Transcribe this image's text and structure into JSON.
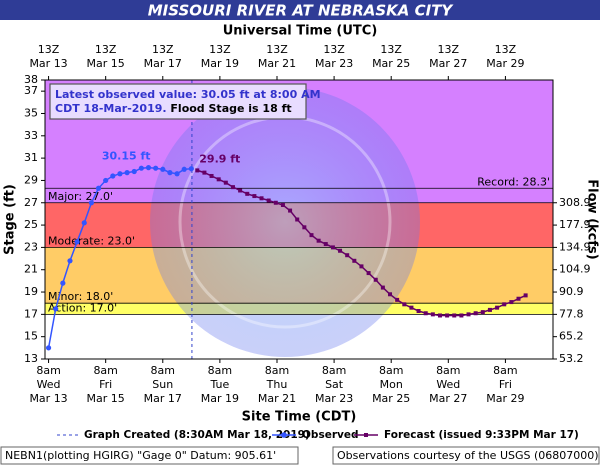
{
  "header": {
    "title": "MISSOURI RIVER AT NEBRASKA CITY",
    "top_axis_title": "Universal Time (UTC)"
  },
  "chart_data": {
    "type": "line",
    "xlabel": "Site Time (CDT)",
    "ylabel": "Stage (ft)",
    "y2label": "Flow (kcfs)",
    "xlim": [
      "2019-03-13T05:00",
      "2019-03-31T00:00"
    ],
    "ylim": [
      13,
      38
    ],
    "yticks": [
      13,
      15,
      17,
      19,
      21,
      23,
      25,
      27,
      29,
      31,
      33,
      35,
      37,
      38
    ],
    "y2ticks": [
      53.2,
      65.2,
      77.8,
      90.9,
      104.9,
      134.9,
      177.9,
      308.9
    ],
    "xticks": [
      {
        "value": "2019-03-13T08:00",
        "label": "8am",
        "weekday": "Wed",
        "date": "Mar 13",
        "utc": "13Z",
        "utc_date": "Mar 13"
      },
      {
        "value": "2019-03-15T08:00",
        "label": "8am",
        "weekday": "Fri",
        "date": "Mar 15",
        "utc": "13Z",
        "utc_date": "Mar 15"
      },
      {
        "value": "2019-03-17T08:00",
        "label": "8am",
        "weekday": "Sun",
        "date": "Mar 17",
        "utc": "13Z",
        "utc_date": "Mar 17"
      },
      {
        "value": "2019-03-19T08:00",
        "label": "8am",
        "weekday": "Tue",
        "date": "Mar 19",
        "utc": "13Z",
        "utc_date": "Mar 19"
      },
      {
        "value": "2019-03-21T08:00",
        "label": "8am",
        "weekday": "Thu",
        "date": "Mar 21",
        "utc": "13Z",
        "utc_date": "Mar 21"
      },
      {
        "value": "2019-03-23T08:00",
        "label": "8am",
        "weekday": "Sat",
        "date": "Mar 23",
        "utc": "13Z",
        "utc_date": "Mar 23"
      },
      {
        "value": "2019-03-25T08:00",
        "label": "8am",
        "weekday": "Mon",
        "date": "Mar 25",
        "utc": "13Z",
        "utc_date": "Mar 25"
      },
      {
        "value": "2019-03-27T08:00",
        "label": "8am",
        "weekday": "Wed",
        "date": "Mar 27",
        "utc": "13Z",
        "utc_date": "Mar 27"
      },
      {
        "value": "2019-03-29T08:00",
        "label": "8am",
        "weekday": "Fri",
        "date": "Mar 29",
        "utc": "13Z",
        "utc_date": "Mar 29"
      }
    ],
    "thresholds": [
      {
        "value": 17,
        "label": "Action: 17.0'",
        "color": "#ffff66"
      },
      {
        "value": 18,
        "label": "Minor: 18.0'",
        "color": "#ffcc66"
      },
      {
        "value": 23,
        "label": "Moderate: 23.0'",
        "color": "#ff6666"
      },
      {
        "value": 27,
        "label": "Major: 27.0'",
        "color": "#d580ff"
      }
    ],
    "record": {
      "value": 28.3,
      "label": "Record: 28.3'"
    },
    "series": [
      {
        "name": "Observed",
        "color": "#3355ff",
        "marker": "circle",
        "x": [
          "2019-03-13T08:00",
          "2019-03-13T14:00",
          "2019-03-13T20:00",
          "2019-03-14T02:00",
          "2019-03-14T08:00",
          "2019-03-14T14:00",
          "2019-03-14T20:00",
          "2019-03-15T02:00",
          "2019-03-15T08:00",
          "2019-03-15T14:00",
          "2019-03-15T20:00",
          "2019-03-16T02:00",
          "2019-03-16T08:00",
          "2019-03-16T14:00",
          "2019-03-16T20:00",
          "2019-03-17T02:00",
          "2019-03-17T08:00",
          "2019-03-17T14:00",
          "2019-03-17T20:00",
          "2019-03-18T02:00",
          "2019-03-18T08:00"
        ],
        "values": [
          14.0,
          17.5,
          19.8,
          21.8,
          23.5,
          25.2,
          27.0,
          28.3,
          29.0,
          29.4,
          29.6,
          29.7,
          29.8,
          30.1,
          30.15,
          30.1,
          30.0,
          29.7,
          29.6,
          30.0,
          30.05
        ]
      },
      {
        "name": "Forecast (issued 9:33PM Mar 17)",
        "color": "#660066",
        "marker": "square",
        "x": [
          "2019-03-18T13:00",
          "2019-03-18T19:00",
          "2019-03-19T01:00",
          "2019-03-19T07:00",
          "2019-03-19T13:00",
          "2019-03-19T19:00",
          "2019-03-20T01:00",
          "2019-03-20T07:00",
          "2019-03-20T13:00",
          "2019-03-20T19:00",
          "2019-03-21T01:00",
          "2019-03-21T07:00",
          "2019-03-21T13:00",
          "2019-03-21T19:00",
          "2019-03-22T01:00",
          "2019-03-22T07:00",
          "2019-03-22T13:00",
          "2019-03-22T19:00",
          "2019-03-23T01:00",
          "2019-03-23T07:00",
          "2019-03-23T13:00",
          "2019-03-23T19:00",
          "2019-03-24T01:00",
          "2019-03-24T07:00",
          "2019-03-24T13:00",
          "2019-03-24T19:00",
          "2019-03-25T01:00",
          "2019-03-25T07:00",
          "2019-03-25T13:00",
          "2019-03-25T19:00",
          "2019-03-26T01:00",
          "2019-03-26T07:00",
          "2019-03-26T13:00",
          "2019-03-26T19:00",
          "2019-03-27T01:00",
          "2019-03-27T07:00",
          "2019-03-27T13:00",
          "2019-03-27T19:00",
          "2019-03-28T01:00",
          "2019-03-28T07:00",
          "2019-03-28T13:00",
          "2019-03-28T19:00",
          "2019-03-29T01:00",
          "2019-03-29T07:00",
          "2019-03-29T13:00",
          "2019-03-29T19:00",
          "2019-03-30T01:00"
        ],
        "values": [
          29.9,
          29.7,
          29.4,
          29.1,
          28.8,
          28.4,
          28.1,
          27.8,
          27.6,
          27.4,
          27.2,
          27.0,
          26.8,
          26.3,
          25.5,
          24.8,
          24.1,
          23.6,
          23.3,
          23.0,
          22.7,
          22.3,
          21.8,
          21.3,
          20.7,
          20.1,
          19.4,
          18.8,
          18.3,
          17.9,
          17.6,
          17.3,
          17.1,
          17.0,
          16.9,
          16.9,
          16.9,
          16.9,
          17.0,
          17.1,
          17.2,
          17.4,
          17.6,
          17.9,
          18.1,
          18.4,
          18.7
        ]
      }
    ],
    "annotations": [
      {
        "text": "30.15 ft",
        "x": "2019-03-16T20:00",
        "y": 30.15,
        "color": "#3355ff"
      },
      {
        "text": "29.9 ft",
        "x": "2019-03-18T13:00",
        "y": 29.9,
        "color": "#660066"
      }
    ],
    "graph_created": {
      "label": "Graph Created (8:30AM Mar 18, 2019)",
      "x": "2019-03-18T08:30",
      "color": "#3344cc"
    },
    "info_box": {
      "line1": "Latest observed value: 30.05 ft at 8:00 AM",
      "line2": "CDT 18-Mar-2019.",
      "line2_tail": " Flood Stage is 18 ft"
    }
  },
  "footer": {
    "left": "NEBN1(plotting HGIRG) \"Gage 0\" Datum: 905.61'",
    "right": "Observations courtesy of the USGS (06807000)"
  }
}
